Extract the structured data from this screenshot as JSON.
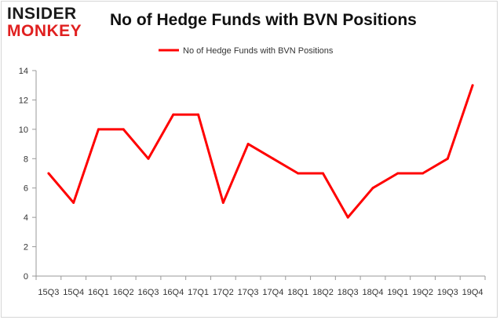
{
  "logo": {
    "line1": "INSIDER",
    "line2": "MONKEY"
  },
  "colors": {
    "series": "#ff0000",
    "axis": "#999999",
    "grid": "#cccccc",
    "logo_red": "#e02020"
  },
  "chart_data": {
    "type": "line",
    "title": "No of Hedge Funds with BVN Positions",
    "xlabel": "",
    "ylabel": "",
    "legend_position": "top-center",
    "grid": false,
    "ylim": [
      0,
      14
    ],
    "yticks": [
      0,
      2,
      4,
      6,
      8,
      10,
      12,
      14
    ],
    "categories": [
      "15Q3",
      "15Q4",
      "16Q1",
      "16Q2",
      "16Q3",
      "16Q4",
      "17Q1",
      "17Q2",
      "17Q3",
      "17Q4",
      "18Q1",
      "18Q2",
      "18Q3",
      "18Q4",
      "19Q1",
      "19Q2",
      "19Q3",
      "19Q4"
    ],
    "series": [
      {
        "name": "No of Hedge Funds with BVN  Positions",
        "values": [
          7,
          5,
          10,
          10,
          8,
          11,
          11,
          5,
          9,
          8,
          7,
          7,
          4,
          6,
          7,
          7,
          8,
          13
        ]
      }
    ]
  }
}
